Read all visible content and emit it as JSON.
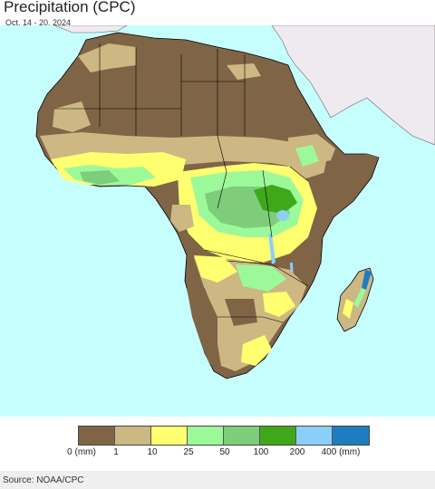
{
  "header": {
    "title": "Precipitation (CPC)",
    "date_range": "Oct. 14 - 20, 2024"
  },
  "legend": {
    "bins": [
      {
        "color": "#7f6546"
      },
      {
        "color": "#cdb883"
      },
      {
        "color": "#ffff70"
      },
      {
        "color": "#9cf99a"
      },
      {
        "color": "#7dcd7b"
      },
      {
        "color": "#3ea81a"
      },
      {
        "color": "#8bcff9"
      },
      {
        "color": "#1e7dc0"
      }
    ],
    "labels": [
      "0 (mm)",
      "1",
      "10",
      "25",
      "50",
      "100",
      "200",
      "400 (mm)"
    ]
  },
  "map": {
    "ocean_color": "#c6fefe",
    "non_africa_land_color": "#efeaf0",
    "border_color": "#000000"
  },
  "footer": {
    "source": "Source: NOAA/CPC"
  }
}
